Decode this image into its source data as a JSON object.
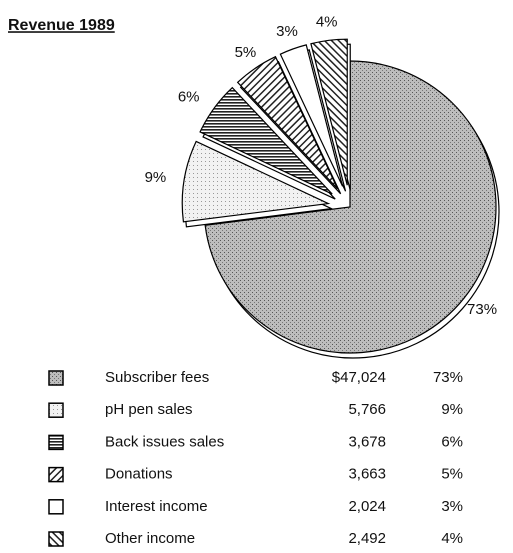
{
  "chart_data": {
    "type": "pie",
    "title": "Revenue  1989",
    "categories": [
      "Subscriber fees",
      "pH pen sales",
      "Back issues sales",
      "Donations",
      "Interest income",
      "Other income"
    ],
    "values": [
      73,
      9,
      6,
      5,
      3,
      4
    ],
    "value_labels": [
      "73%",
      "9%",
      "6%",
      "5%",
      "3%",
      "4%"
    ],
    "amounts": [
      "$47,024",
      "5,766",
      "3,678",
      "3,663",
      "2,024",
      "2,492"
    ]
  }
}
